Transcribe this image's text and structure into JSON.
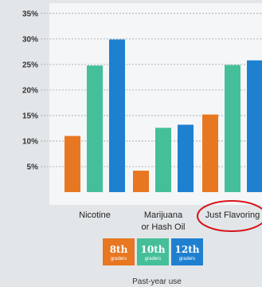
{
  "chart_data": {
    "type": "bar",
    "title": "",
    "xlabel": "",
    "ylabel": "",
    "ylim": [
      0,
      37
    ],
    "yticks": [
      5,
      10,
      15,
      20,
      25,
      30,
      35
    ],
    "ytick_labels": [
      "5%",
      "10%",
      "15%",
      "20%",
      "25%",
      "30%",
      "35%"
    ],
    "grid": true,
    "categories": [
      [
        "Nicotine"
      ],
      [
        "Marijuana",
        "or Hash Oil"
      ],
      [
        "Just Flavoring"
      ]
    ],
    "series": [
      {
        "name": "8th graders",
        "color": "#e87722",
        "values": [
          11.0,
          4.2,
          15.2
        ]
      },
      {
        "name": "10th graders",
        "color": "#45bf99",
        "values": [
          24.8,
          12.6,
          24.9
        ]
      },
      {
        "name": "12th graders",
        "color": "#1f80d0",
        "values": [
          29.9,
          13.2,
          25.8
        ]
      }
    ],
    "legend": [
      {
        "big": "8th",
        "small": "graders",
        "color": "#e87722"
      },
      {
        "big": "10th",
        "small": "graders",
        "color": "#45bf99"
      },
      {
        "big": "12th",
        "small": "graders",
        "color": "#1f80d0"
      }
    ],
    "legend_position": "bottom-center",
    "footnote": "Past-year use",
    "highlight": {
      "category_index": 2,
      "shape": "ellipse",
      "color": "#d8141b"
    }
  }
}
